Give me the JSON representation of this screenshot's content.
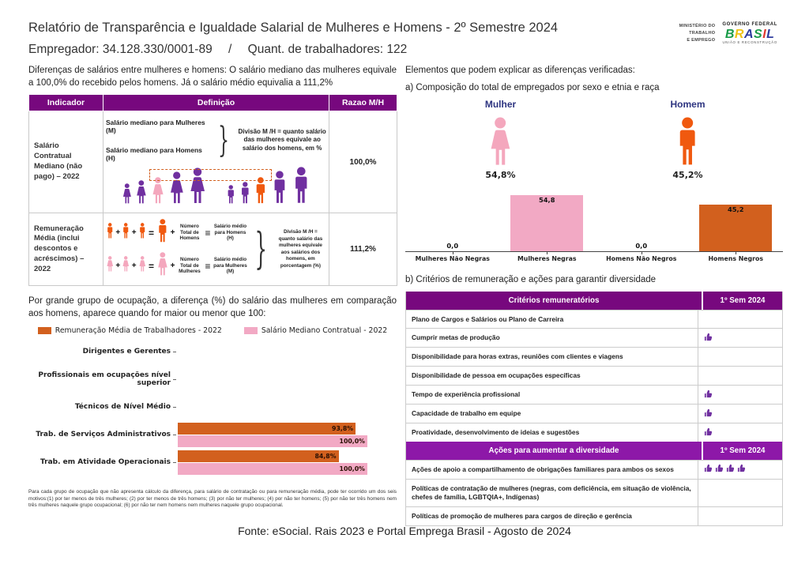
{
  "colors": {
    "purple_header": "#77087e",
    "purple_header2": "#8d18a8",
    "purple_icon": "#7030a0",
    "pink": "#f4a7bd",
    "orange": "#f0590f",
    "bar_pink": "#f2a9c4",
    "bar_orange": "#d2601e",
    "navy": "#2d3480"
  },
  "header": {
    "title": "Relatório de Transparência e Igualdade Salarial de Mulheres e Homens - 2º Semestre 2024",
    "employer_label": "Empregador:",
    "employer_value": "34.128.330/0001-89",
    "separator": "/",
    "workers_label": "Quant. de trabalhadores:",
    "workers_value": "122",
    "logo": {
      "ministry_lines": [
        "MINISTÉRIO DO",
        "TRABALHO",
        "E EMPREGO"
      ],
      "gov": "GOVERNO FEDERAL",
      "brand": "BRASIL",
      "brand_colors": [
        "#1a9c49",
        "#f0c419",
        "#2f3d9e",
        "#1a9c49",
        "#e03c31",
        "#2f3d9e"
      ],
      "tagline": "UNIÃO E RECONSTRUÇÃO"
    }
  },
  "left": {
    "intro": "Diferenças de salários entre mulheres e homens: O salário mediano das mulheres equivale a 100,0% do recebido pelos homens. Já o salário médio equivalia a 111,2%",
    "table": {
      "headers": [
        "Indicador",
        "Definição",
        "Razao M/H"
      ],
      "rows": [
        {
          "indicator": "Salário Contratual Mediano (não pago) – 2022",
          "def_line1": "Salário mediano para Mulheres (M)",
          "def_line2": "Salário mediano para Homens (H)",
          "def_note": "Divisão M /H = quanto salário das mulheres equivale ao salário dos homens, em %",
          "ratio": "100,0%"
        },
        {
          "indicator": "Remuneração Média (inclui descontos e acréscimos) – 2022",
          "men_total_label": "Número Total de Homens",
          "men_avg_label": "Salário médio para Homens (H)",
          "women_total_label": "Número Total de Mulheres",
          "women_avg_label": "Salário médio para Mulheres (M)",
          "def_note": "Divisão M /H = quanto salário das mulheres equivale aos salários dos homens, em porcentagem (%)",
          "ratio": "111,2%"
        }
      ]
    },
    "occupation_intro": "Por grande grupo de ocupação, a diferença (%) do salário das mulheres em comparação aos homens, aparece quando for maior ou menor que 100:",
    "footnote": "Para cada grupo de ocupação que não apresenta cálculo da diferença, para salário de contratação ou para remuneração média, pode ter ocorrido um dos seis motivos:(1) por ter menos de três mulheres; (2) por ter menos de três homens; (3) por não ter mulheres; (4) por não ter homens; (5) por não ter três homens nem três mulheres naquele grupo ocupacional; (6) por não ter nem homens nem mulheres naquele grupo ocupacional."
  },
  "right": {
    "elements_title": "Elementos que podem explicar as diferenças verificadas:",
    "a_title": "a) Composição do total de empregados por sexo e etnia e raça",
    "gender": {
      "female_label": "Mulher",
      "female_pct": "54,8%",
      "male_label": "Homem",
      "male_pct": "45,2%"
    },
    "b_title": "b) Critérios de remuneração e ações para garantir diversidade",
    "criteria_table": {
      "header1": [
        "Critérios remuneratórios",
        "1º Sem 2024"
      ],
      "rows1": [
        {
          "label": "Plano de Cargos e Salários ou Plano de Carreira",
          "icons": 0
        },
        {
          "label": "Cumprir metas de produção",
          "icons": 1
        },
        {
          "label": "Disponibilidade para horas extras, reuniões com clientes e viagens",
          "icons": 0
        },
        {
          "label": "Disponibilidade de pessoa em ocupações específicas",
          "icons": 0
        },
        {
          "label": "Tempo de experiência profissional",
          "icons": 1
        },
        {
          "label": "Capacidade de trabalho em equipe",
          "icons": 1
        },
        {
          "label": "Proatividade, desenvolvimento de ideias e sugestões",
          "icons": 1
        }
      ],
      "header2": [
        "Ações para aumentar a diversidade",
        "1º Sem 2024"
      ],
      "rows2": [
        {
          "label": "Ações de apoio a compartilhamento de obrigações familiares para ambos os sexos",
          "icons": 4
        },
        {
          "label": "Políticas de contratação de mulheres (negras, com deficiência, em situação de violência, chefes de família, LGBTQIA+, Indígenas)",
          "icons": 0
        },
        {
          "label": "Políticas de promoção de mulheres para cargos de direção e gerência",
          "icons": 0
        }
      ]
    }
  },
  "footer": "Fonte: eSocial. Rais 2023 e Portal Emprega Brasil - Agosto de 2024",
  "chart_data": [
    {
      "type": "bar",
      "orientation": "horizontal",
      "title": "",
      "xlabel": "",
      "ylabel": "",
      "categories": [
        "Dirigentes e Gerentes",
        "Profissionais em ocupações nível superior",
        "Técnicos de Nível Médio",
        "Trab. de Serviços Administrativos",
        "Trab. em Atividade Operacionais"
      ],
      "series": [
        {
          "name": "Remuneração Média de Trabalhadores - 2022",
          "color": "#d2601e",
          "values": [
            null,
            null,
            null,
            93.8,
            84.8
          ],
          "labels": [
            null,
            null,
            null,
            "93,8%",
            "84,8%"
          ]
        },
        {
          "name": "Salário Mediano Contratual - 2022",
          "color": "#f2a9c4",
          "values": [
            null,
            null,
            null,
            100.0,
            100.0
          ],
          "labels": [
            null,
            null,
            null,
            "100,0%",
            "100,0%"
          ]
        }
      ],
      "xlim": [
        0,
        105
      ],
      "grid": false,
      "legend_position": "top"
    },
    {
      "type": "bar",
      "orientation": "vertical",
      "title": "",
      "xlabel": "",
      "ylabel": "",
      "categories": [
        "Mulheres Não Negras",
        "Mulheres Negras",
        "Homens Não Negros",
        "Homens Negros"
      ],
      "values": [
        0.0,
        54.8,
        0.0,
        45.2
      ],
      "labels": [
        "0,0",
        "54,8",
        "0,0",
        "45,2"
      ],
      "colors": [
        "#f2a9c4",
        "#f2a9c4",
        "#d2601e",
        "#d2601e"
      ],
      "ylim": [
        0,
        60
      ],
      "grid": false
    }
  ]
}
